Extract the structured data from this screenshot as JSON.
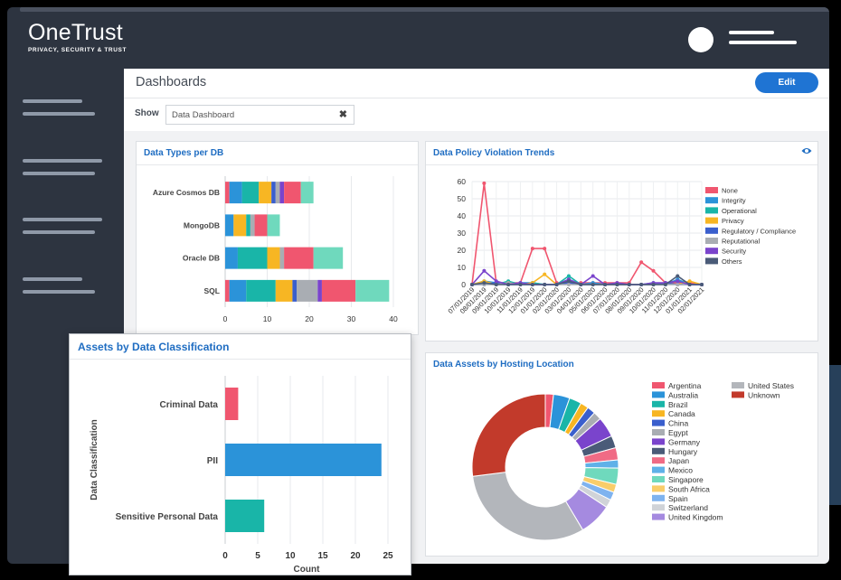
{
  "brand": {
    "name": "OneTrust",
    "tagline": "PRIVACY, SECURITY & TRUST"
  },
  "header": {
    "title": "Dashboards",
    "edit_label": "Edit"
  },
  "filter": {
    "label": "Show",
    "value": "Data Dashboard"
  },
  "colors": {
    "None": "#f0566f",
    "Integrity": "#2b93d9",
    "Operational": "#19b5a8",
    "Privacy": "#f7b623",
    "Regulatory / Compliance": "#3a5fcd",
    "Reputational": "#a9adb3",
    "Security": "#7a44cc",
    "Others": "#4a5b78",
    "accent": "#1f74d3"
  },
  "chart_data": [
    {
      "type": "bar",
      "title": "Data Types per DB",
      "orientation": "horizontal-stacked",
      "categories": [
        "Azure Cosmos DB",
        "MongoDB",
        "Oracle DB",
        "SQL"
      ],
      "xlim": [
        0,
        40
      ],
      "xticks": [
        "0",
        "10",
        "20",
        "30",
        "40"
      ],
      "segments": [
        [
          [
            1,
            "#f0566f"
          ],
          [
            3,
            "#2b93d9"
          ],
          [
            4,
            "#19b5a8"
          ],
          [
            3,
            "#f7b623"
          ],
          [
            1,
            "#3a5fcd"
          ],
          [
            1,
            "#a9adb3"
          ],
          [
            1,
            "#7a44cc"
          ],
          [
            4,
            "#f0566f"
          ],
          [
            3,
            "#6fd9bd"
          ]
        ],
        [
          [
            2,
            "#2b93d9"
          ],
          [
            3,
            "#f7b623"
          ],
          [
            1,
            "#19b5a8"
          ],
          [
            1,
            "#a9adb3"
          ],
          [
            3,
            "#f0566f"
          ],
          [
            3,
            "#6fd9bd"
          ]
        ],
        [
          [
            3,
            "#2b93d9"
          ],
          [
            7,
            "#19b5a8"
          ],
          [
            3,
            "#f7b623"
          ],
          [
            1,
            "#a9adb3"
          ],
          [
            7,
            "#f0566f"
          ],
          [
            7,
            "#6fd9bd"
          ]
        ],
        [
          [
            1,
            "#f0566f"
          ],
          [
            4,
            "#2b93d9"
          ],
          [
            7,
            "#19b5a8"
          ],
          [
            4,
            "#f7b623"
          ],
          [
            1,
            "#3a5fcd"
          ],
          [
            5,
            "#a9adb3"
          ],
          [
            1,
            "#7a44cc"
          ],
          [
            8,
            "#f0566f"
          ],
          [
            8,
            "#6fd9bd"
          ]
        ]
      ]
    },
    {
      "type": "line",
      "title": "Data Policy Violation Trends",
      "x": [
        "07/01/2019",
        "08/01/2019",
        "09/01/2019",
        "10/01/2019",
        "11/01/2019",
        "12/01/2019",
        "01/01/2020",
        "02/01/2020",
        "03/01/2020",
        "04/01/2020",
        "05/01/2020",
        "06/01/2020",
        "07/01/2020",
        "08/01/2020",
        "09/01/2020",
        "10/01/2020",
        "11/01/2020",
        "12/01/2020",
        "01/01/2021",
        "02/01/2021"
      ],
      "ylim": [
        0,
        60
      ],
      "yticks": [
        "0",
        "10",
        "20",
        "30",
        "40",
        "50",
        "60"
      ],
      "series": [
        {
          "name": "None",
          "values": [
            0,
            59,
            1,
            1,
            1,
            21,
            21,
            1,
            1,
            1,
            1,
            1,
            1,
            1,
            13,
            8,
            1,
            1,
            1,
            0
          ]
        },
        {
          "name": "Integrity",
          "values": [
            0,
            2,
            1,
            0,
            1,
            1,
            0,
            0,
            3,
            0,
            1,
            0,
            0,
            0,
            0,
            1,
            0,
            3,
            0,
            0
          ]
        },
        {
          "name": "Operational",
          "values": [
            0,
            1,
            0,
            2,
            0,
            1,
            0,
            0,
            5,
            0,
            0,
            0,
            0,
            0,
            0,
            0,
            1,
            2,
            0,
            0
          ]
        },
        {
          "name": "Privacy",
          "values": [
            0,
            2,
            0,
            1,
            0,
            1,
            6,
            0,
            1,
            0,
            0,
            0,
            0,
            0,
            0,
            0,
            1,
            0,
            2,
            0
          ]
        },
        {
          "name": "Regulatory / Compliance",
          "values": [
            0,
            0,
            1,
            0,
            0,
            0,
            0,
            0,
            1,
            0,
            0,
            0,
            0,
            0,
            0,
            0,
            1,
            0,
            0,
            0
          ]
        },
        {
          "name": "Reputational",
          "values": [
            0,
            0,
            0,
            1,
            0,
            0,
            0,
            0,
            0,
            0,
            0,
            0,
            0,
            0,
            0,
            0,
            0,
            0,
            0,
            0
          ]
        },
        {
          "name": "Security",
          "values": [
            0,
            8,
            2,
            0,
            1,
            0,
            0,
            0,
            3,
            0,
            5,
            0,
            1,
            0,
            0,
            1,
            1,
            2,
            0,
            0
          ]
        },
        {
          "name": "Others",
          "values": [
            0,
            1,
            0,
            0,
            0,
            0,
            0,
            0,
            2,
            0,
            0,
            0,
            0,
            0,
            0,
            0,
            0,
            5,
            0,
            0
          ]
        }
      ]
    },
    {
      "type": "bar",
      "title": "Assets by Data Classification",
      "orientation": "horizontal",
      "categories": [
        "Criminal Data",
        "PII",
        "Sensitive Personal Data"
      ],
      "values": [
        2,
        24,
        6
      ],
      "bar_colors": [
        "#f0566f",
        "#2b93d9",
        "#19b5a8"
      ],
      "xlim": [
        0,
        25
      ],
      "xticks": [
        "0",
        "5",
        "10",
        "15",
        "20",
        "25"
      ],
      "xlabel": "Count",
      "ylabel": "Data Classification"
    },
    {
      "type": "pie",
      "title": "Data Assets by Hosting Location",
      "donut": true,
      "labels": [
        "Argentina",
        "Australia",
        "Brazil",
        "Canada",
        "China",
        "Egypt",
        "Germany",
        "Hungary",
        "Japan",
        "Mexico",
        "Singapore",
        "South Africa",
        "Spain",
        "Switzerland",
        "United Kingdom",
        "United States",
        "Unknown"
      ],
      "colors": [
        "#f0566f",
        "#2b93d9",
        "#19b5a8",
        "#f7b623",
        "#3a5fcd",
        "#a9adb3",
        "#7a44cc",
        "#4a5b78",
        "#f06b85",
        "#5fb1e8",
        "#6fd9bd",
        "#f9cd6a",
        "#7fb3ef",
        "#d0d3d8",
        "#a58ae0",
        "#b3b6bb",
        "#c23a2b"
      ],
      "values": [
        2,
        4,
        3,
        2,
        2,
        2,
        5,
        3,
        3,
        2,
        4,
        2,
        2,
        2,
        8,
        35,
        30
      ]
    }
  ]
}
